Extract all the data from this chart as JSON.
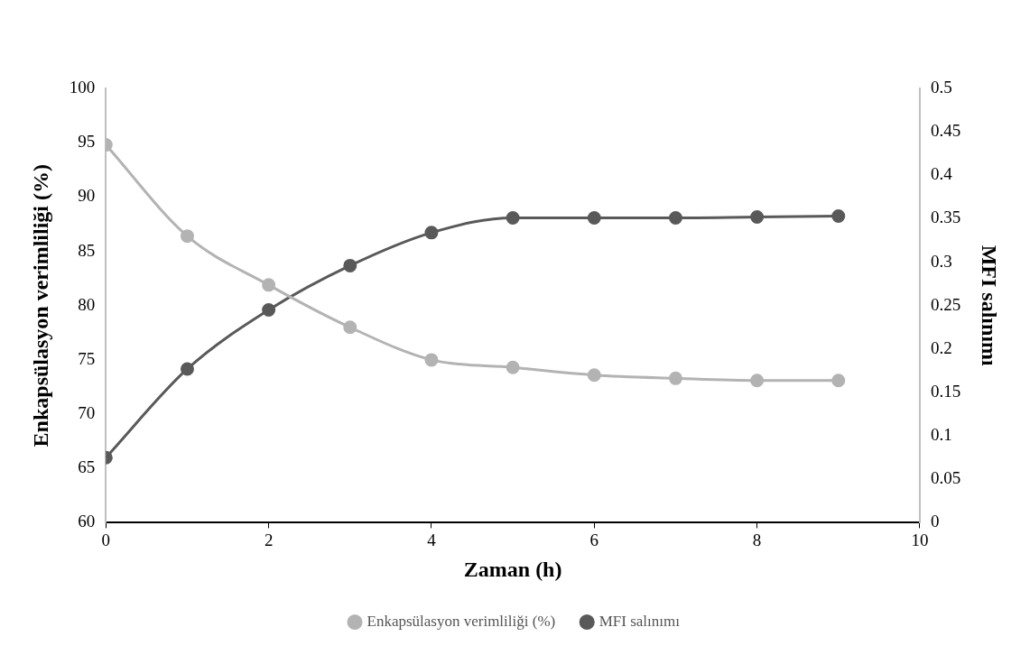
{
  "chart_data": {
    "type": "line",
    "xlabel": "Zaman (h)",
    "ylabel": "Enkapsülasyon verimliliği (%)",
    "y2label": "MFI salınımı",
    "x": [
      0,
      1,
      2,
      3,
      4,
      5,
      6,
      7,
      8,
      9
    ],
    "series": [
      {
        "name": "Enkapsülasyon verimliliği (%)",
        "color": "#b3b3b3",
        "values": [
          94.8,
          86.4,
          81.9,
          78.0,
          75.0,
          74.3,
          73.6,
          73.3,
          73.1,
          73.1
        ]
      },
      {
        "name": "MFI salınımı",
        "color": "#595959",
        "axis": "y2",
        "values": [
          0.075,
          0.177,
          0.245,
          0.296,
          0.334,
          0.351,
          0.351,
          0.351,
          0.352,
          0.353
        ]
      }
    ],
    "xlim": [
      0,
      10
    ],
    "xticks": [
      0,
      2,
      4,
      6,
      8,
      10
    ],
    "ylim": [
      60,
      100
    ],
    "yticks": [
      60,
      65,
      70,
      75,
      80,
      85,
      90,
      95,
      100
    ],
    "y2lim": [
      0,
      0.5
    ],
    "y2ticks": [
      0,
      0.05,
      0.1,
      0.15,
      0.2,
      0.25,
      0.3,
      0.35,
      0.4,
      0.45,
      0.5
    ],
    "legend": "bottom",
    "marker": "circle",
    "line_style": "solid"
  }
}
